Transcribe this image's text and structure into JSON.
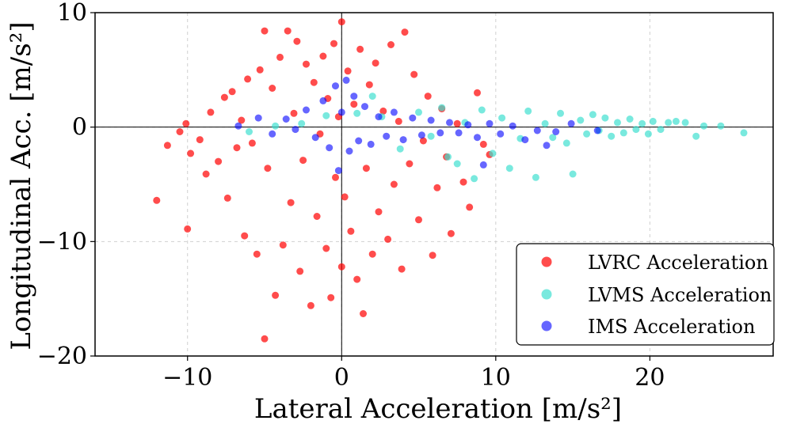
{
  "chart_data": {
    "type": "scatter",
    "title": "",
    "xlabel": "Lateral Acceleration [m/s²]",
    "ylabel": "Longitudinal Acc. [m/s²]",
    "xlim": [
      -16,
      28
    ],
    "ylim": [
      -20,
      10
    ],
    "xticks": [
      -10,
      0,
      10,
      20
    ],
    "yticks": [
      -20,
      -10,
      0,
      10
    ],
    "xtick_labels": [
      "−10",
      "0",
      "10",
      "20"
    ],
    "ytick_labels": [
      "−20",
      "−10",
      "0",
      "10"
    ],
    "grid": true,
    "reference_lines": {
      "x": 0,
      "y": 0
    },
    "legend_position": "bottom-right",
    "series": [
      {
        "name": "LVRC Acceleration",
        "color": "#ff0000",
        "alpha": 0.7,
        "points": [
          [
            -12,
            -6.4
          ],
          [
            -10,
            -8.9
          ],
          [
            -11.3,
            -1.6
          ],
          [
            -10.5,
            -0.4
          ],
          [
            -10.1,
            0.3
          ],
          [
            -9.8,
            -2.3
          ],
          [
            -9.2,
            -1.1
          ],
          [
            -8.8,
            -4.1
          ],
          [
            -8.5,
            1.3
          ],
          [
            -8,
            -3
          ],
          [
            -7.6,
            2.6
          ],
          [
            -7.4,
            -6.2
          ],
          [
            -7.1,
            3.1
          ],
          [
            -6.8,
            -1.8
          ],
          [
            -6.5,
            0.6
          ],
          [
            -6.3,
            -9.5
          ],
          [
            -6.1,
            4.2
          ],
          [
            -5.8,
            -1.4
          ],
          [
            -5.5,
            -11.1
          ],
          [
            -5.3,
            5
          ],
          [
            -5,
            8.4
          ],
          [
            -5,
            -18.5
          ],
          [
            -4.8,
            -3.6
          ],
          [
            -4.5,
            3.4
          ],
          [
            -4.3,
            -14.7
          ],
          [
            -4,
            6.1
          ],
          [
            -3.8,
            -10.3
          ],
          [
            -3.5,
            8.4
          ],
          [
            -3.3,
            -6.6
          ],
          [
            -3.1,
            1.2
          ],
          [
            -2.9,
            7.5
          ],
          [
            -2.7,
            -12.6
          ],
          [
            -2.5,
            -2.9
          ],
          [
            -2.3,
            5.5
          ],
          [
            -2,
            -15.6
          ],
          [
            -1.8,
            3.9
          ],
          [
            -1.6,
            -7.8
          ],
          [
            -1.4,
            -0.6
          ],
          [
            -1.2,
            6.2
          ],
          [
            -1,
            -10.6
          ],
          [
            -0.9,
            2.5
          ],
          [
            -0.7,
            -14.9
          ],
          [
            -0.5,
            7.3
          ],
          [
            -0.4,
            -4.4
          ],
          [
            -0.2,
            0.9
          ],
          [
            0,
            9.2
          ],
          [
            0,
            -12.2
          ],
          [
            0.2,
            -6.1
          ],
          [
            0.4,
            4.9
          ],
          [
            0.6,
            -9.1
          ],
          [
            0.8,
            2
          ],
          [
            1,
            -13.3
          ],
          [
            1.2,
            6.8
          ],
          [
            1.4,
            -16.3
          ],
          [
            1.6,
            -3.6
          ],
          [
            1.8,
            3.7
          ],
          [
            2,
            -11.1
          ],
          [
            2.2,
            5.6
          ],
          [
            2.4,
            -7.4
          ],
          [
            2.7,
            1.4
          ],
          [
            3,
            -9.8
          ],
          [
            3.2,
            7.2
          ],
          [
            3.4,
            -5
          ],
          [
            3.7,
            0.5
          ],
          [
            3.9,
            -12.4
          ],
          [
            4.1,
            8.3
          ],
          [
            4.4,
            -3.2
          ],
          [
            4.7,
            4.6
          ],
          [
            5,
            -8.1
          ],
          [
            5.3,
            -1.2
          ],
          [
            5.6,
            2.7
          ],
          [
            5.9,
            -11.2
          ],
          [
            6.2,
            -5.3
          ],
          [
            6.5,
            1.6
          ],
          [
            6.8,
            -2.6
          ],
          [
            7.1,
            -9.3
          ],
          [
            7.5,
            0.3
          ],
          [
            7.9,
            -4.8
          ],
          [
            8.3,
            -7
          ],
          [
            8.8,
            3
          ],
          [
            9.2,
            -1.5
          ],
          [
            9.6,
            -2.4
          ]
        ]
      },
      {
        "name": "LVMS Acceleration",
        "color": "#40e0d0",
        "alpha": 0.7,
        "points": [
          [
            -6,
            -0.4
          ],
          [
            -4.3,
            0.1
          ],
          [
            -2.6,
            0.3
          ],
          [
            -1,
            1
          ],
          [
            1,
            1.2
          ],
          [
            2,
            2.7
          ],
          [
            2.6,
            0.9
          ],
          [
            3.8,
            -1.9
          ],
          [
            5,
            1.3
          ],
          [
            5.8,
            -0.8
          ],
          [
            6.5,
            1.7
          ],
          [
            6.9,
            -2.6
          ],
          [
            7.5,
            -3.2
          ],
          [
            8,
            0.4
          ],
          [
            8.6,
            -4.5
          ],
          [
            9.1,
            1.5
          ],
          [
            9.8,
            -2.3
          ],
          [
            10.4,
            0.8
          ],
          [
            10.9,
            -3.6
          ],
          [
            11.6,
            -1
          ],
          [
            12.1,
            1.4
          ],
          [
            12.6,
            -4.4
          ],
          [
            13.2,
            0.3
          ],
          [
            13.7,
            -0.9
          ],
          [
            14.2,
            1.2
          ],
          [
            14.6,
            -1.4
          ],
          [
            15,
            -4.1
          ],
          [
            15.5,
            0.6
          ],
          [
            15.9,
            -0.6
          ],
          [
            16.3,
            1.1
          ],
          [
            16.7,
            -0.3
          ],
          [
            17.1,
            0.8
          ],
          [
            17.5,
            -0.8
          ],
          [
            17.9,
            0.4
          ],
          [
            18.3,
            -0.5
          ],
          [
            18.7,
            0.7
          ],
          [
            19.1,
            -0.2
          ],
          [
            19.5,
            0.3
          ],
          [
            19.9,
            -0.6
          ],
          [
            20.2,
            0.5
          ],
          [
            20.7,
            -0.2
          ],
          [
            21.2,
            0.4
          ],
          [
            21.7,
            0.5
          ],
          [
            22.3,
            0.4
          ],
          [
            23,
            -0.8
          ],
          [
            23.5,
            0.1
          ],
          [
            24.6,
            0.1
          ],
          [
            26.1,
            -0.5
          ]
        ]
      },
      {
        "name": "IMS Acceleration",
        "color": "#0000ff",
        "alpha": 0.6,
        "points": [
          [
            -6.7,
            0.1
          ],
          [
            -5.4,
            0.8
          ],
          [
            -4.5,
            -0.6
          ],
          [
            -3.6,
            0.7
          ],
          [
            -3,
            -0.2
          ],
          [
            -2.3,
            1.5
          ],
          [
            -1.7,
            -0.9
          ],
          [
            -1.2,
            2.3
          ],
          [
            -0.8,
            -1.8
          ],
          [
            -0.4,
            3.6
          ],
          [
            -0.2,
            -3.8
          ],
          [
            0,
            1.3
          ],
          [
            0.3,
            4.1
          ],
          [
            0.5,
            -2.1
          ],
          [
            0.8,
            2.7
          ],
          [
            1.1,
            -1.2
          ],
          [
            1.5,
            1.8
          ],
          [
            1.9,
            -1.5
          ],
          [
            2.4,
            0.9
          ],
          [
            2.9,
            -0.8
          ],
          [
            3.4,
            1.3
          ],
          [
            4,
            -1.1
          ],
          [
            4.6,
            0.8
          ],
          [
            5.2,
            -0.7
          ],
          [
            5.8,
            0.6
          ],
          [
            6.4,
            -0.5
          ],
          [
            7,
            0.4
          ],
          [
            7.6,
            -0.5
          ],
          [
            8.2,
            0.2
          ],
          [
            8.8,
            -0.9
          ],
          [
            9.2,
            -3.3
          ],
          [
            9.6,
            0.3
          ],
          [
            10.3,
            -0.6
          ],
          [
            11.1,
            0.1
          ],
          [
            11.9,
            -1.1
          ],
          [
            12.7,
            -0.3
          ],
          [
            13.3,
            -1.6
          ],
          [
            13.9,
            -0.4
          ],
          [
            14.9,
            0.3
          ],
          [
            16.6,
            -0.3
          ]
        ]
      }
    ]
  }
}
